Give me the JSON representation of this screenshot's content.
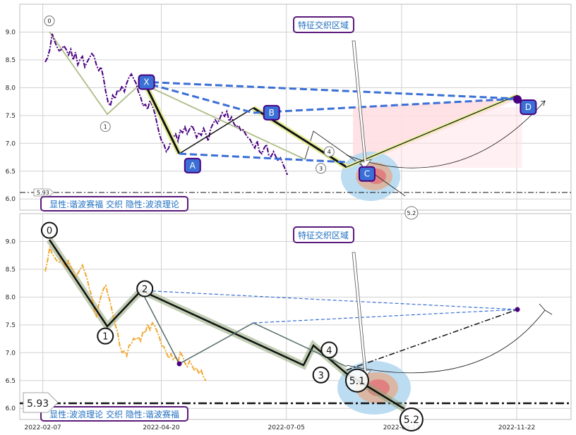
{
  "chart_data": [
    {
      "type": "line",
      "title": "",
      "xlabel": "",
      "ylabel": "",
      "ylim": [
        5.8,
        9.5
      ],
      "yticks": [
        "6.0",
        "6.5",
        "7.0",
        "7.5",
        "8.0",
        "8.5",
        "9.0"
      ],
      "colors": {
        "price": "#4b0082",
        "harmonic": "#3a6fd6",
        "zone_box": "#5a1a7a"
      },
      "zone_label": "特征交织区域",
      "legend_text": "显性:谐波赛福 交织 隐性:波浪理论",
      "support_label": "5.93",
      "support_value": 5.93,
      "harmonic_points": [
        {
          "label": "X",
          "x": "2022-04-11",
          "y": 8.1
        },
        {
          "label": "A",
          "x": "2022-05-09",
          "y": 6.6
        },
        {
          "label": "B",
          "x": "2022-06-26",
          "y": 7.55
        },
        {
          "label": "C",
          "x": "2022-08-23",
          "y": 6.45
        },
        {
          "label": "D",
          "x": "2022-11-29",
          "y": 7.65
        }
      ],
      "wave_points": [
        {
          "label": "0",
          "x": "2022-02-11",
          "y": 9.2
        },
        {
          "label": "1",
          "x": "2022-03-17",
          "y": 7.3
        },
        {
          "label": "3",
          "x": "2022-07-26",
          "y": 6.55
        },
        {
          "label": "4",
          "x": "2022-07-31",
          "y": 6.85
        },
        {
          "label": "5.2",
          "x": "2022-09-19",
          "y": 5.75
        }
      ]
    },
    {
      "type": "line",
      "title": "",
      "xlabel": "",
      "ylabel": "",
      "ylim": [
        5.8,
        9.5
      ],
      "yticks": [
        "6.0",
        "6.5",
        "7.0",
        "7.5",
        "8.0",
        "8.5",
        "9.0"
      ],
      "xticks": [
        "2022-02-07",
        "2022-04-20",
        "2022-07-05",
        "2022-09-13",
        "2022-11-22"
      ],
      "colors": {
        "price": "#f0a830",
        "wave": "#1a1a1a",
        "band": "#8fa878"
      },
      "zone_label": "特征交织区域",
      "legend_text": "显性:波浪理论 交织 隐性:谐波赛福",
      "support_label": "5.93",
      "support_value": 5.93,
      "wave_points": [
        {
          "label": "0",
          "x": "2022-02-11",
          "y": 9.2
        },
        {
          "label": "1",
          "x": "2022-03-17",
          "y": 7.3
        },
        {
          "label": "2",
          "x": "2022-04-10",
          "y": 8.15
        },
        {
          "label": "3",
          "x": "2022-07-26",
          "y": 6.6
        },
        {
          "label": "4",
          "x": "2022-07-31",
          "y": 7.05
        },
        {
          "label": "5.1",
          "x": "2022-08-17",
          "y": 6.5
        },
        {
          "label": "5.2",
          "x": "2022-09-19",
          "y": 5.8
        }
      ]
    }
  ]
}
